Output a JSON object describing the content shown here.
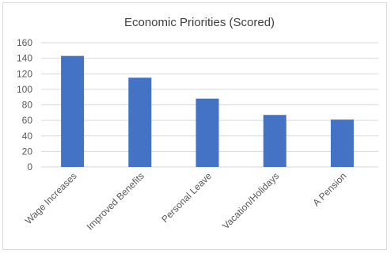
{
  "chart_data": {
    "type": "bar",
    "title": "Economic Priorities (Scored)",
    "categories": [
      "Wage Increases",
      "Improved Benefits",
      "Personal Leave",
      "Vacation/Holidays",
      "A Pension"
    ],
    "values": [
      143,
      115,
      88,
      67,
      61
    ],
    "xlabel": "",
    "ylabel": "",
    "ylim": [
      0,
      160
    ],
    "yticks": [
      0,
      20,
      40,
      60,
      80,
      100,
      120,
      140,
      160
    ],
    "grid": true,
    "legend": "none",
    "bar_color": "#4472c4",
    "grid_color": "#d9d9d9"
  }
}
